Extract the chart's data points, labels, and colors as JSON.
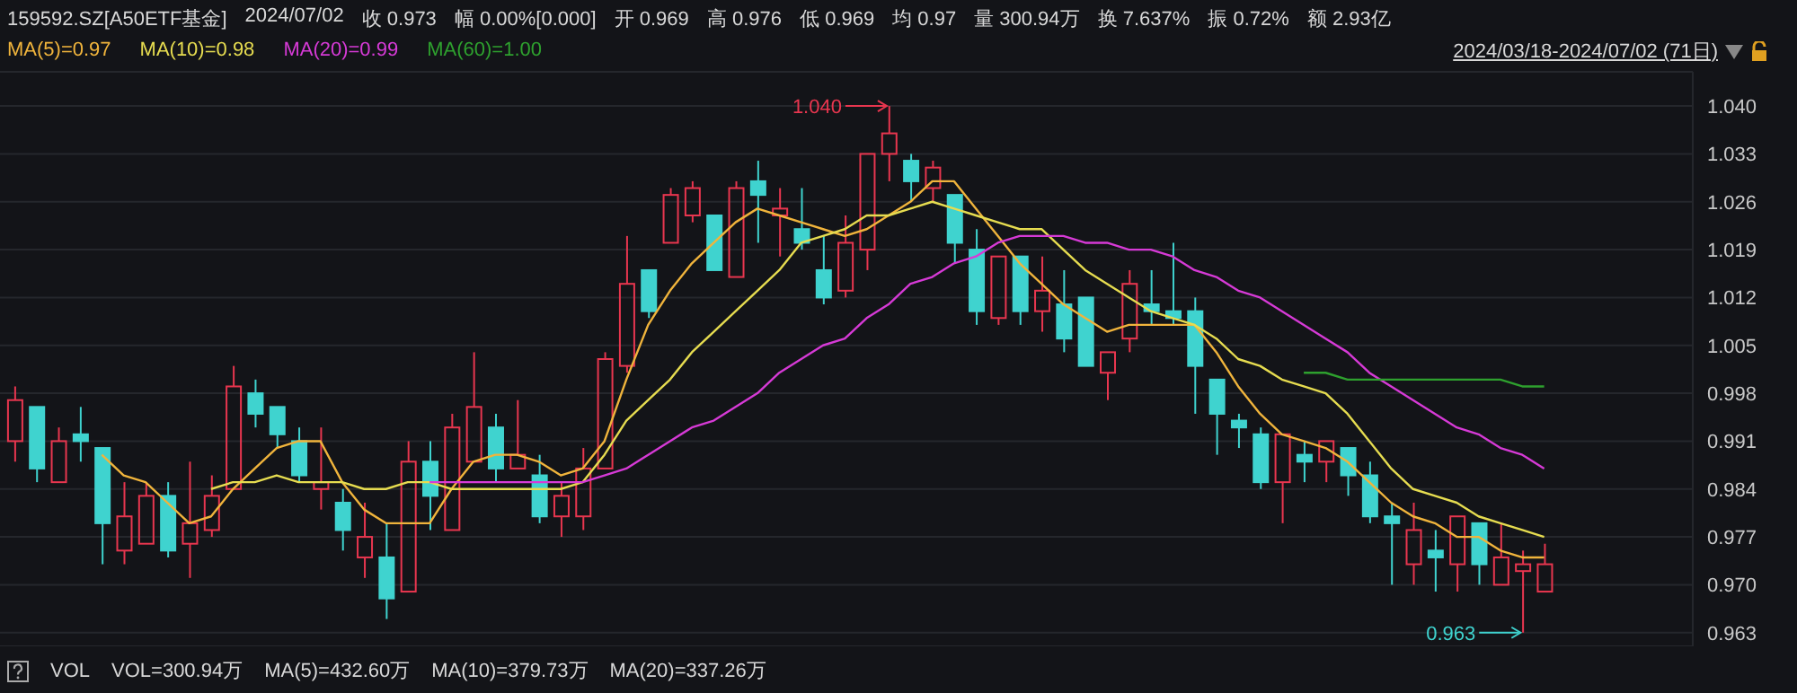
{
  "chart_data": {
    "type": "candlestick",
    "title": "159592.SZ[A50ETF基金]",
    "subtitle": "2024/07/02",
    "categories": [
      null,
      null,
      null,
      null,
      null,
      null,
      null,
      null,
      null,
      null,
      null,
      null,
      null,
      null,
      null,
      null,
      null,
      null,
      null,
      null,
      null,
      null,
      null,
      null,
      null,
      null,
      null,
      null,
      null,
      null,
      null,
      null,
      null,
      null,
      null,
      null,
      null,
      null,
      null,
      null,
      null,
      null,
      null,
      null,
      null,
      null,
      null,
      null,
      null,
      null,
      null,
      null,
      null,
      null,
      null,
      null,
      null,
      null,
      null,
      null,
      null,
      null,
      null,
      null,
      null,
      null,
      null,
      null,
      null,
      null,
      null
    ],
    "ohlc": [
      [
        0.991,
        0.999,
        0.988,
        0.997
      ],
      [
        0.996,
        0.996,
        0.985,
        0.987
      ],
      [
        0.985,
        0.993,
        0.985,
        0.991
      ],
      [
        0.992,
        0.996,
        0.988,
        0.991
      ],
      [
        0.99,
        0.99,
        0.973,
        0.979
      ],
      [
        0.975,
        0.985,
        0.973,
        0.98
      ],
      [
        0.976,
        0.985,
        0.976,
        0.983
      ],
      [
        0.983,
        0.985,
        0.974,
        0.975
      ],
      [
        0.976,
        0.988,
        0.971,
        0.979
      ],
      [
        0.978,
        0.986,
        0.977,
        0.983
      ],
      [
        0.984,
        1.002,
        0.984,
        0.999
      ],
      [
        0.998,
        1.0,
        0.993,
        0.995
      ],
      [
        0.996,
        0.996,
        0.99,
        0.992
      ],
      [
        0.991,
        0.993,
        0.985,
        0.986
      ],
      [
        0.984,
        0.993,
        0.981,
        0.985
      ],
      [
        0.982,
        0.984,
        0.975,
        0.978
      ],
      [
        0.974,
        0.982,
        0.971,
        0.977
      ],
      [
        0.974,
        0.979,
        0.965,
        0.968
      ],
      [
        0.969,
        0.991,
        0.969,
        0.988
      ],
      [
        0.988,
        0.991,
        0.978,
        0.983
      ],
      [
        0.978,
        0.995,
        0.978,
        0.993
      ],
      [
        0.988,
        1.004,
        0.988,
        0.996
      ],
      [
        0.993,
        0.995,
        0.985,
        0.987
      ],
      [
        0.987,
        0.997,
        0.987,
        0.989
      ],
      [
        0.986,
        0.989,
        0.979,
        0.98
      ],
      [
        0.98,
        0.985,
        0.977,
        0.983
      ],
      [
        0.98,
        0.99,
        0.978,
        0.987
      ],
      [
        0.987,
        1.004,
        0.987,
        1.003
      ],
      [
        1.002,
        1.021,
        1.001,
        1.014
      ],
      [
        1.016,
        1.016,
        1.009,
        1.01
      ],
      [
        1.02,
        1.028,
        1.02,
        1.027
      ],
      [
        1.024,
        1.029,
        1.023,
        1.028
      ],
      [
        1.024,
        1.024,
        1.016,
        1.016
      ],
      [
        1.015,
        1.029,
        1.015,
        1.028
      ],
      [
        1.029,
        1.032,
        1.02,
        1.027
      ],
      [
        1.024,
        1.028,
        1.018,
        1.025
      ],
      [
        1.022,
        1.028,
        1.019,
        1.02
      ],
      [
        1.016,
        1.021,
        1.011,
        1.012
      ],
      [
        1.013,
        1.024,
        1.012,
        1.02
      ],
      [
        1.019,
        1.033,
        1.016,
        1.033
      ],
      [
        1.033,
        1.04,
        1.029,
        1.036
      ],
      [
        1.032,
        1.033,
        1.026,
        1.029
      ],
      [
        1.028,
        1.032,
        1.026,
        1.031
      ],
      [
        1.027,
        1.027,
        1.017,
        1.02
      ],
      [
        1.019,
        1.022,
        1.008,
        1.01
      ],
      [
        1.009,
        1.018,
        1.008,
        1.018
      ],
      [
        1.018,
        1.018,
        1.008,
        1.01
      ],
      [
        1.01,
        1.018,
        1.007,
        1.013
      ],
      [
        1.011,
        1.016,
        1.004,
        1.006
      ],
      [
        1.012,
        1.012,
        1.002,
        1.002
      ],
      [
        1.001,
        1.004,
        0.997,
        1.004
      ],
      [
        1.006,
        1.016,
        1.004,
        1.014
      ],
      [
        1.011,
        1.016,
        1.008,
        1.01
      ],
      [
        1.01,
        1.02,
        1.008,
        1.009
      ],
      [
        1.01,
        1.012,
        0.995,
        1.002
      ],
      [
        1.0,
        1.0,
        0.989,
        0.995
      ],
      [
        0.994,
        0.995,
        0.99,
        0.993
      ],
      [
        0.992,
        0.993,
        0.984,
        0.985
      ],
      [
        0.985,
        0.992,
        0.979,
        0.992
      ],
      [
        0.989,
        0.991,
        0.985,
        0.988
      ],
      [
        0.988,
        0.991,
        0.985,
        0.991
      ],
      [
        0.99,
        0.99,
        0.983,
        0.986
      ],
      [
        0.986,
        0.988,
        0.979,
        0.98
      ],
      [
        0.98,
        0.982,
        0.97,
        0.979
      ],
      [
        0.973,
        0.982,
        0.97,
        0.978
      ],
      [
        0.975,
        0.978,
        0.969,
        0.974
      ],
      [
        0.973,
        0.98,
        0.969,
        0.98
      ],
      [
        0.979,
        0.979,
        0.97,
        0.973
      ],
      [
        0.97,
        0.979,
        0.97,
        0.974
      ],
      [
        0.972,
        0.975,
        0.963,
        0.973
      ],
      [
        0.969,
        0.976,
        0.969,
        0.973
      ]
    ],
    "colors": [
      "#e8364f",
      "#3fd3cf",
      "#e8364f",
      "#3fd3cf",
      "#3fd3cf",
      "#e8364f",
      "#e8364f",
      "#3fd3cf",
      "#e8364f",
      "#e8364f",
      "#e8364f",
      "#3fd3cf",
      "#3fd3cf",
      "#3fd3cf",
      "#e8364f",
      "#3fd3cf",
      "#e8364f",
      "#3fd3cf",
      "#e8364f",
      "#3fd3cf",
      "#e8364f",
      "#e8364f",
      "#3fd3cf",
      "#e8364f",
      "#3fd3cf",
      "#e8364f",
      "#e8364f",
      "#e8364f",
      "#e8364f",
      "#3fd3cf",
      "#e8364f",
      "#e8364f",
      "#3fd3cf",
      "#e8364f",
      "#3fd3cf",
      "#e8364f",
      "#3fd3cf",
      "#3fd3cf",
      "#e8364f",
      "#e8364f",
      "#e8364f",
      "#3fd3cf",
      "#e8364f",
      "#3fd3cf",
      "#3fd3cf",
      "#e8364f",
      "#3fd3cf",
      "#e8364f",
      "#3fd3cf",
      "#3fd3cf",
      "#e8364f",
      "#e8364f",
      "#3fd3cf",
      "#3fd3cf",
      "#3fd3cf",
      "#3fd3cf",
      "#3fd3cf",
      "#3fd3cf",
      "#e8364f",
      "#3fd3cf",
      "#e8364f",
      "#3fd3cf",
      "#3fd3cf",
      "#3fd3cf",
      "#e8364f",
      "#3fd3cf",
      "#e8364f",
      "#3fd3cf",
      "#e8364f",
      "#e8364f",
      "#e8364f"
    ],
    "series": [
      {
        "type": "line",
        "name": "MA(5)=0.97",
        "color": "#f0b43c",
        "values": [
          null,
          null,
          null,
          null,
          0.989,
          0.986,
          0.985,
          0.982,
          0.979,
          0.98,
          0.984,
          0.987,
          0.99,
          0.991,
          0.991,
          0.985,
          0.981,
          0.979,
          0.979,
          0.979,
          0.984,
          0.988,
          0.989,
          0.989,
          0.988,
          0.986,
          0.987,
          0.991,
          1.0,
          1.008,
          1.013,
          1.017,
          1.02,
          1.023,
          1.025,
          1.024,
          1.023,
          1.022,
          1.021,
          1.022,
          1.024,
          1.026,
          1.029,
          1.029,
          1.025,
          1.021,
          1.017,
          1.014,
          1.011,
          1.009,
          1.007,
          1.008,
          1.008,
          1.008,
          1.008,
          1.004,
          0.999,
          0.995,
          0.992,
          0.991,
          0.99,
          0.988,
          0.985,
          0.982,
          0.98,
          0.979,
          0.977,
          0.977,
          0.975,
          0.974,
          0.974
        ]
      },
      {
        "type": "line",
        "name": "MA(10)=0.98",
        "color": "#e6dc50",
        "values": [
          null,
          null,
          null,
          null,
          null,
          null,
          null,
          null,
          null,
          0.984,
          0.985,
          0.985,
          0.986,
          0.985,
          0.985,
          0.985,
          0.984,
          0.984,
          0.985,
          0.985,
          0.984,
          0.984,
          0.984,
          0.984,
          0.984,
          0.984,
          0.985,
          0.989,
          0.994,
          0.997,
          1.0,
          1.004,
          1.007,
          1.01,
          1.013,
          1.016,
          1.02,
          1.021,
          1.022,
          1.024,
          1.024,
          1.025,
          1.026,
          1.025,
          1.024,
          1.023,
          1.022,
          1.022,
          1.019,
          1.016,
          1.014,
          1.012,
          1.01,
          1.009,
          1.008,
          1.006,
          1.003,
          1.002,
          1.0,
          0.999,
          0.998,
          0.995,
          0.991,
          0.987,
          0.984,
          0.983,
          0.982,
          0.98,
          0.979,
          0.978,
          0.977
        ]
      },
      {
        "type": "line",
        "name": "MA(20)=0.99",
        "color": "#d63ad6",
        "values": [
          null,
          null,
          null,
          null,
          null,
          null,
          null,
          null,
          null,
          null,
          null,
          null,
          null,
          null,
          null,
          null,
          null,
          null,
          null,
          0.985,
          0.985,
          0.985,
          0.985,
          0.985,
          0.985,
          0.985,
          0.985,
          0.986,
          0.987,
          0.989,
          0.991,
          0.993,
          0.994,
          0.996,
          0.998,
          1.001,
          1.003,
          1.005,
          1.006,
          1.009,
          1.011,
          1.014,
          1.015,
          1.017,
          1.018,
          1.02,
          1.021,
          1.021,
          1.021,
          1.02,
          1.02,
          1.019,
          1.019,
          1.018,
          1.016,
          1.015,
          1.013,
          1.012,
          1.01,
          1.008,
          1.006,
          1.004,
          1.001,
          0.999,
          0.997,
          0.995,
          0.993,
          0.992,
          0.99,
          0.989,
          0.987
        ]
      },
      {
        "type": "line",
        "name": "MA(60)=1.00",
        "color": "#2ea02e",
        "values": [
          null,
          null,
          null,
          null,
          null,
          null,
          null,
          null,
          null,
          null,
          null,
          null,
          null,
          null,
          null,
          null,
          null,
          null,
          null,
          null,
          null,
          null,
          null,
          null,
          null,
          null,
          null,
          null,
          null,
          null,
          null,
          null,
          null,
          null,
          null,
          null,
          null,
          null,
          null,
          null,
          null,
          null,
          null,
          null,
          null,
          null,
          null,
          null,
          null,
          null,
          null,
          null,
          null,
          null,
          null,
          null,
          null,
          null,
          null,
          1.001,
          1.001,
          1.0,
          1.0,
          1.0,
          1.0,
          1.0,
          1.0,
          1.0,
          1.0,
          0.999,
          0.999
        ]
      }
    ],
    "ylim": [
      0.961,
      1.045
    ],
    "yticks": [
      {
        "value": 1.04,
        "label": "1.040"
      },
      1.033,
      1.026,
      1.019,
      1.012,
      1.005,
      0.998,
      0.991,
      0.984,
      0.977,
      {
        "value": 0.97,
        "label": "0.970"
      },
      0.963
    ],
    "tick_labels": "y",
    "grid": "y",
    "legend": "top left",
    "marker": "none",
    "line_style": "solid",
    "annotations": [
      "收 0.973",
      "幅 0.00%[0.000]",
      "开 0.969",
      "高 0.976",
      "低 0.969",
      "均 0.97",
      "量 300.94万",
      "换 7.637%",
      "振 0.72%",
      "额 2.93亿",
      "2024/03/18-2024/07/02 (71日)",
      "VOL",
      "VOL=300.94万",
      "MA(5)=432.60万",
      "MA(10)=379.73万",
      "MA(20)=337.26万",
      "1.040",
      "0.963"
    ]
  }
}
